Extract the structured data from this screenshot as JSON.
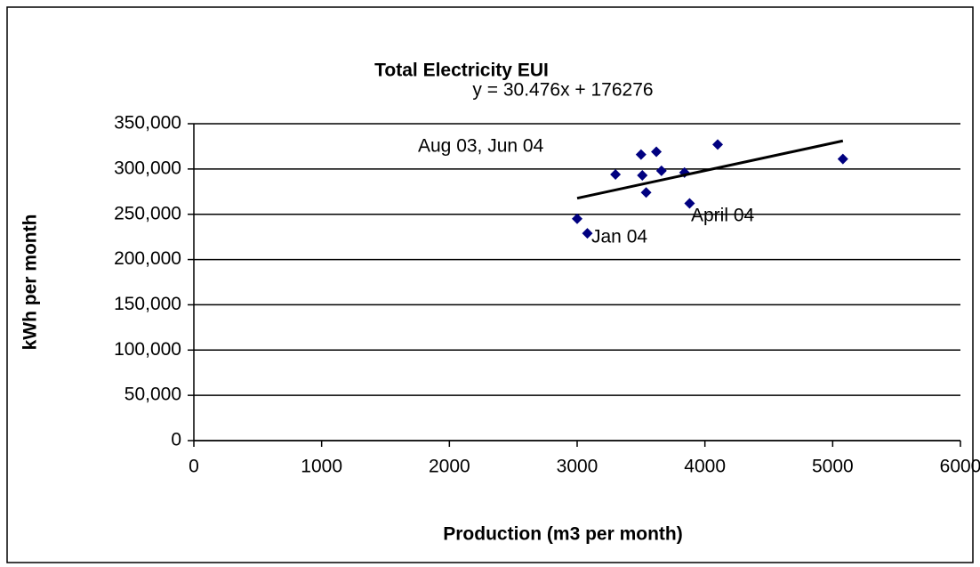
{
  "chart_data": {
    "type": "scatter",
    "title": "Total Electricity EUI",
    "x_label": "Production (m3 per month)",
    "y_label": "kWh per month",
    "series": [
      {
        "name": null,
        "color": "#000080",
        "x": [
          3000,
          3080,
          3300,
          3500,
          3510,
          3540,
          3620,
          3660,
          3840,
          3880,
          4100,
          5080
        ],
        "values": [
          245000,
          229000,
          294000,
          316000,
          293000,
          274000,
          319000,
          298000,
          296000,
          262000,
          327000,
          311000
        ]
      }
    ],
    "trendline": {
      "label": "y = 30.476x + 176276",
      "color": "#000000",
      "x": [
        3000,
        5080
      ],
      "values": [
        267704,
        331094
      ]
    },
    "annotations": [
      "Aug 03, Jun 04",
      "Jan 04",
      "April 04"
    ],
    "xlim": [
      0,
      6000
    ],
    "xticks": [
      0,
      1000,
      2000,
      3000,
      4000,
      5000,
      6000
    ],
    "ylim": [
      0,
      350000
    ],
    "yticks": [
      {
        "value": 0,
        "label": "0"
      },
      {
        "value": 50000,
        "label": "50,000"
      },
      {
        "value": 100000,
        "label": "100,000"
      },
      {
        "value": 150000,
        "label": "150,000"
      },
      {
        "value": 200000,
        "label": "200,000"
      },
      {
        "value": 250000,
        "label": "250,000"
      },
      {
        "value": 300000,
        "label": "300,000"
      },
      {
        "value": 350000,
        "label": "350,000"
      }
    ],
    "grid": true
  }
}
